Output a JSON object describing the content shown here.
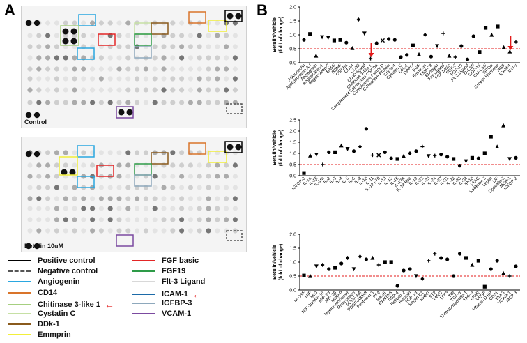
{
  "panels": {
    "a": "A",
    "b": "B"
  },
  "membranes": {
    "control": "Control",
    "treated": "Betulin 10uM"
  },
  "legend": [
    {
      "label": "Positive control",
      "color": "#000000",
      "style": "solid",
      "arrow": false
    },
    {
      "label": "Negative control",
      "color": "#555555",
      "style": "dashed",
      "arrow": false
    },
    {
      "label": "Angiogenin",
      "color": "#2aa7e0",
      "style": "solid",
      "arrow": false
    },
    {
      "label": "CD14",
      "color": "#d9742a",
      "style": "solid",
      "arrow": false
    },
    {
      "label": "Chitinase 3-like 1",
      "color": "#a6cf80",
      "style": "solid",
      "arrow": true
    },
    {
      "label": "Cystatin C",
      "color": "#c6e0a4",
      "style": "solid",
      "arrow": false
    },
    {
      "label": "DDk-1",
      "color": "#8a5a1c",
      "style": "solid",
      "arrow": false
    },
    {
      "label": "Emmprin",
      "color": "#f2ef3a",
      "style": "solid",
      "arrow": false
    },
    {
      "label": "FGF basic",
      "color": "#e32626",
      "style": "solid",
      "arrow": false
    },
    {
      "label": "FGF19",
      "color": "#2e9b48",
      "style": "solid",
      "arrow": false
    },
    {
      "label": "Flt-3 Ligand",
      "color": "#d8d8d8",
      "style": "solid",
      "arrow": false
    },
    {
      "label": "ICAM-1",
      "color": "#1c6aa8",
      "style": "solid",
      "arrow": true
    },
    {
      "label": "IGFBP-3",
      "color": "#8ea8bc",
      "style": "solid",
      "arrow": false
    },
    {
      "label": "VCAM-1",
      "color": "#7b4aa0",
      "style": "solid",
      "arrow": false
    }
  ],
  "colors": {
    "threshold": "#e31b1b",
    "arrow": "#e31b1b"
  },
  "chart_data": [
    {
      "type": "scatter",
      "title": "",
      "ylabel": "Betulin/Vehicle\n(fold of change)",
      "ylim": [
        0,
        2
      ],
      "yticks": [
        "0.0",
        "0.5",
        "1.0",
        "1.5",
        "2.0"
      ],
      "threshold": 0.5,
      "categories": [
        "Adiponectin",
        "Apolipoprotein A-I",
        "Angiogenin",
        "Angiopoietin-1",
        "Angiopoietin-2",
        "BAFF",
        "BDNF",
        "C5/C5a",
        "CD14",
        "CD30",
        "CD40 ligand",
        "Chitinase 3-like 1",
        "Complement Component C5/C5a",
        "Complement Factor D",
        "C-Reactive Protein",
        "Cripto-1",
        "Cystatin C",
        "Dkk-1",
        "DPPIV",
        "EGF",
        "Emmprin",
        "ENA-78",
        "Endoglin",
        "Fas Ligand",
        "FGF basic",
        "FGF-7",
        "FGF-19",
        "Flt-3 Ligand",
        "G-CSF",
        "GDF-15",
        "GM-CSF",
        "GROα",
        "Growth Hormone",
        "HGF",
        "ICAM-1",
        "IFN-γ"
      ],
      "values": [
        0.82,
        1.03,
        0.25,
        0.92,
        0.9,
        0.8,
        0.82,
        0.72,
        0.52,
        1.55,
        1.05,
        0.15,
        0.7,
        0.8,
        0.85,
        0.82,
        0.2,
        0.28,
        0.62,
        0.3,
        1.0,
        0.22,
        0.6,
        1.05,
        0.25,
        0.2,
        0.6,
        0.12,
        0.95,
        0.38,
        1.25,
        1.0,
        1.3,
        0.55,
        0.4,
        0.75
      ],
      "markers": [
        "circle",
        "square",
        "triangle",
        "tri-down",
        "tri-down",
        "square",
        "square",
        "circle",
        "triangle",
        "diamond",
        "tri-down",
        "plus",
        "circle",
        "cross",
        "circle",
        "circle",
        "circle",
        "circle",
        "square",
        "triangle",
        "diamond",
        "circle",
        "tri-down",
        "plus",
        "triangle",
        "plus",
        "circle",
        "circle",
        "circle",
        "square",
        "square",
        "triangle",
        "square",
        "triangle",
        "triangle",
        "plus"
      ],
      "arrows_at": [
        "Chitinase 3-like 1",
        "ICAM-1"
      ]
    },
    {
      "type": "scatter",
      "title": "",
      "ylabel": "Betulin/Vehicle\n(fold of change)",
      "ylim": [
        0,
        2.5
      ],
      "yticks": [
        "0.0",
        "0.5",
        "1.0",
        "1.5",
        "2.0",
        "2.5"
      ],
      "threshold": 0.5,
      "categories": [
        "IGFBP-3",
        "IL-1α",
        "IL-1β",
        "IL-1ra",
        "IL-2",
        "IL-3",
        "IL-4",
        "IL-5",
        "IL-6",
        "IL-8",
        "IL-10",
        "IL-11",
        "IL-12 p70",
        "IL-13",
        "IL-15",
        "IL-16",
        "IL-17A",
        "IL-18 Bpa",
        "IL-19",
        "IL-22",
        "IL-23",
        "IL-24",
        "IL-27",
        "IL-31",
        "IL-32",
        "IL-33",
        "IL-34",
        "IP-10",
        "I-TAC",
        "Kallikrein 3",
        "Leptin",
        "LIF",
        "Lipocalin-2",
        "MCP-1",
        "IGFBP-2"
      ],
      "values": [
        0.12,
        0.9,
        0.95,
        0.5,
        1.05,
        1.05,
        1.35,
        1.2,
        1.1,
        1.3,
        2.1,
        0.92,
        0.92,
        1.05,
        0.78,
        0.75,
        0.88,
        1.0,
        1.1,
        1.3,
        0.88,
        0.9,
        0.95,
        0.85,
        0.75,
        0.45,
        0.65,
        0.8,
        0.78,
        1.0,
        1.75,
        1.3,
        2.25,
        0.75,
        0.8
      ],
      "markers": [
        "square",
        "triangle",
        "tri-down",
        "plus",
        "circle",
        "square",
        "triangle",
        "tri-down",
        "circle",
        "diamond",
        "circle",
        "plus",
        "cross",
        "circle",
        "circle",
        "square",
        "triangle",
        "diamond",
        "circle",
        "plus",
        "tri-down",
        "plus",
        "circle",
        "circle",
        "square",
        "circle",
        "tri-down",
        "square",
        "circle",
        "square",
        "square",
        "triangle",
        "triangle",
        "tri-down",
        "circle"
      ],
      "arrows_at": []
    },
    {
      "type": "scatter",
      "title": "",
      "ylabel": "Betulin/Vehicle\n(fold of change)",
      "ylim": [
        0,
        2.0
      ],
      "yticks": [
        "0.0",
        "0.5",
        "1.0",
        "1.5",
        "2.0"
      ],
      "threshold": 0.5,
      "categories": [
        "M-CSF",
        "MIF",
        "MIG",
        "MIP-1α/MIP-1β",
        "MIP-3α",
        "MIP-3β",
        "MMP-9",
        "Myeloperoxidase",
        "Osteopontin",
        "PDGF-AA",
        "PDGF-AB/BB",
        "Pentraxin 3",
        "PF4",
        "RAGE",
        "RANTES",
        "RBP-4",
        "Relaxin-2",
        "Resistin",
        "SDF-1α",
        "Serpin E1",
        "SHBG",
        "ST2",
        "TARC",
        "TFF3",
        "TfR",
        "TGF-α",
        "Thrombospondin-1",
        "TNF-α",
        "uPAR",
        "VEGF",
        "Vitamin D BP",
        "CD31",
        "TIM-3",
        "VCAM-1",
        "MCP-3"
      ],
      "values": [
        0.52,
        0.5,
        0.85,
        0.9,
        0.75,
        0.8,
        0.95,
        1.15,
        0.75,
        1.2,
        1.1,
        1.15,
        0.9,
        1.0,
        1.0,
        0.15,
        0.7,
        0.75,
        0.5,
        0.4,
        1.05,
        1.3,
        1.15,
        1.1,
        0.5,
        1.3,
        1.15,
        0.9,
        1.05,
        0.12,
        0.75,
        1.05,
        0.6,
        0.5,
        0.85
      ],
      "markers": [
        "square",
        "triangle",
        "tri-down",
        "diamond",
        "circle",
        "square",
        "circle",
        "diamond",
        "tri-down",
        "diamond",
        "circle",
        "triangle",
        "plus",
        "square",
        "square",
        "circle",
        "circle",
        "circle",
        "tri-down",
        "diamond",
        "plus",
        "plus",
        "circle",
        "circle",
        "circle",
        "circle",
        "square",
        "triangle",
        "square",
        "square",
        "circle",
        "circle",
        "triangle",
        "plus",
        "circle"
      ],
      "arrows_at": []
    }
  ]
}
